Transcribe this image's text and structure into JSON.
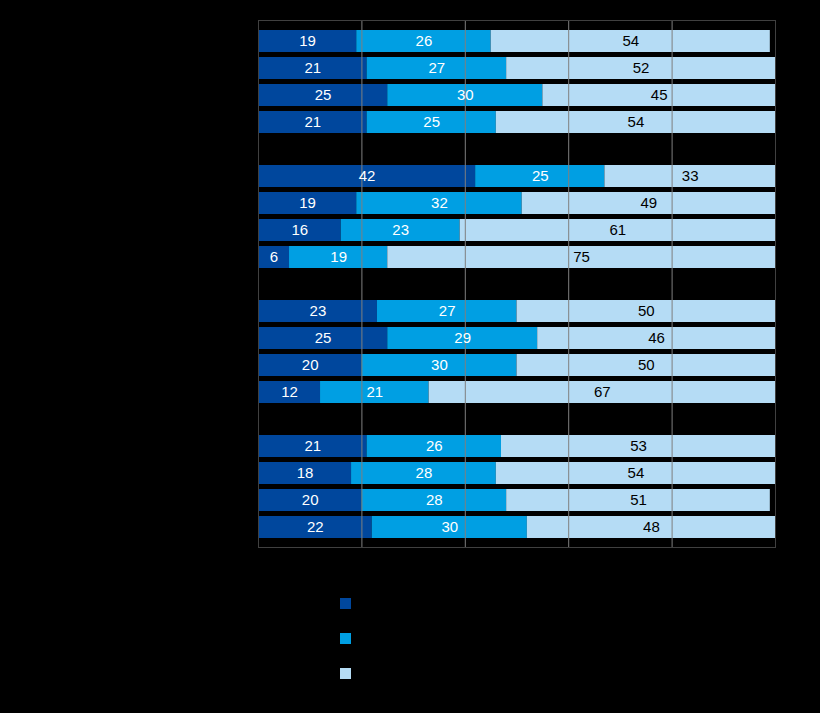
{
  "chart_data": {
    "type": "bar",
    "orientation": "horizontal",
    "stacked": true,
    "data_labels": true,
    "tick_labels": false,
    "grid": true,
    "legend": "bottom",
    "categories": [
      null,
      null,
      null,
      null,
      null,
      null,
      null,
      null,
      null,
      null,
      null,
      null,
      null,
      null,
      null,
      null,
      null,
      null,
      null
    ],
    "xlim": [
      0,
      100
    ],
    "xticks": [
      0,
      20,
      40,
      60,
      80,
      100
    ],
    "series": [
      {
        "color": "#00479d",
        "values": [
          19,
          21,
          25,
          21,
          null,
          42,
          19,
          16,
          6,
          null,
          23,
          25,
          20,
          12,
          null,
          21,
          18,
          20,
          22
        ]
      },
      {
        "color": "#009fe3",
        "values": [
          26,
          27,
          30,
          25,
          null,
          25,
          32,
          23,
          19,
          null,
          27,
          29,
          30,
          21,
          null,
          26,
          28,
          28,
          30
        ]
      },
      {
        "color": "#b5dcf5",
        "values": [
          54,
          52,
          45,
          54,
          null,
          33,
          49,
          61,
          75,
          null,
          50,
          46,
          50,
          67,
          null,
          53,
          54,
          51,
          48
        ]
      }
    ]
  }
}
